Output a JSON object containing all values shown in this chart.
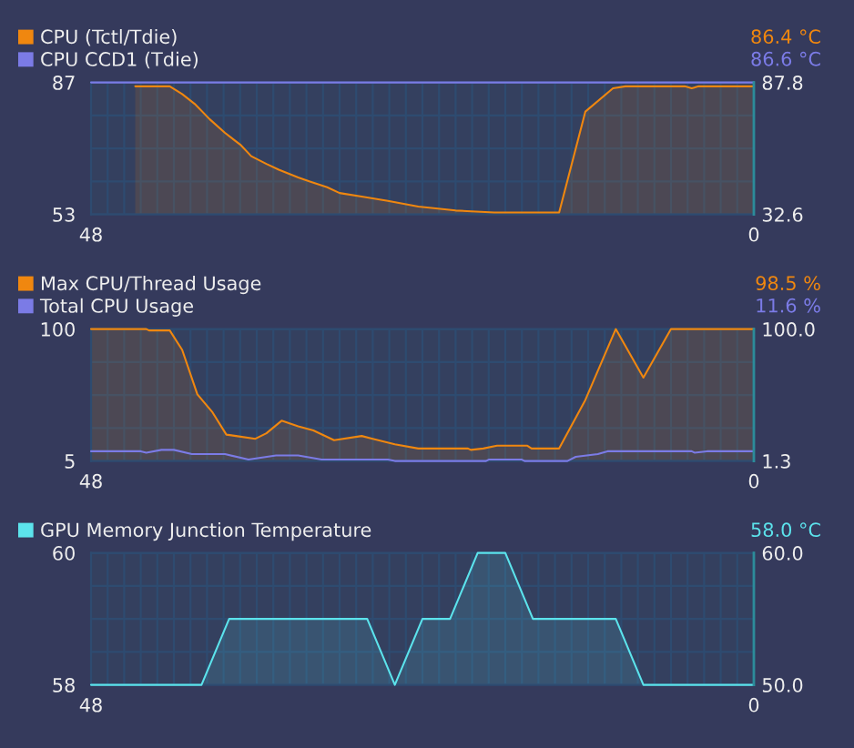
{
  "chart_data": [
    {
      "type": "area",
      "legend": "top left",
      "grid": true,
      "series": [
        {
          "name": "CPU (Tctl/Tdie)",
          "color": "#f0870f",
          "x": [
            44.8,
            42.3,
            41.4,
            40.5,
            39.4,
            38.3,
            37.2,
            36.4,
            35.3,
            34.4,
            33.0,
            32.2,
            30.9,
            30.0,
            28.2,
            26.5,
            24.3,
            21.6,
            18.8,
            14.1,
            12.2,
            10.2,
            9.3,
            5.0,
            4.5,
            4.0,
            0
          ],
          "values": [
            86,
            86,
            84,
            81.5,
            77.5,
            74,
            71,
            68,
            66,
            64.5,
            62.5,
            61.5,
            60,
            58.5,
            57.5,
            56.5,
            55,
            54,
            53.5,
            53.5,
            79.5,
            85.5,
            86,
            86,
            85.5,
            86,
            86
          ]
        },
        {
          "name": "CPU CCD1 (Tdie)",
          "color": "#7b7be6",
          "type": "line",
          "x": [
            48,
            0
          ],
          "values": [
            87,
            87
          ]
        }
      ],
      "xlim": [
        48,
        0
      ],
      "xticks": [
        48,
        {
          "value": 46.8,
          "label": null
        },
        {
          "value": 45.6,
          "label": null
        },
        {
          "value": 44.4,
          "label": null
        },
        {
          "value": 43.2,
          "label": null
        },
        {
          "value": 42,
          "label": null
        },
        {
          "value": 40.8,
          "label": null
        },
        {
          "value": 39.6,
          "label": null
        },
        {
          "value": 38.4,
          "label": null
        },
        {
          "value": 37.2,
          "label": null
        },
        {
          "value": 36,
          "label": null
        },
        {
          "value": 34.8,
          "label": null
        },
        {
          "value": 33.6,
          "label": null
        },
        {
          "value": 32.4,
          "label": null
        },
        {
          "value": 31.2,
          "label": null
        },
        {
          "value": 30,
          "label": null
        },
        {
          "value": 28.8,
          "label": null
        },
        {
          "value": 27.6,
          "label": null
        },
        {
          "value": 26.4,
          "label": null
        },
        {
          "value": 25.2,
          "label": null
        },
        {
          "value": 24,
          "label": null
        },
        {
          "value": 22.8,
          "label": null
        },
        {
          "value": 21.6,
          "label": null
        },
        {
          "value": 20.4,
          "label": null
        },
        {
          "value": 19.2,
          "label": null
        },
        {
          "value": 18,
          "label": null
        },
        {
          "value": 16.8,
          "label": null
        },
        {
          "value": 15.6,
          "label": null
        },
        {
          "value": 14.4,
          "label": null
        },
        {
          "value": 13.2,
          "label": null
        },
        {
          "value": 12,
          "label": null
        },
        {
          "value": 10.8,
          "label": null
        },
        {
          "value": 9.6,
          "label": null
        },
        {
          "value": 8.4,
          "label": null
        },
        {
          "value": 7.2,
          "label": null
        },
        {
          "value": 6,
          "label": null
        },
        {
          "value": 4.8,
          "label": null
        },
        {
          "value": 3.6,
          "label": null
        },
        {
          "value": 2.4,
          "label": null
        },
        {
          "value": 1.2,
          "label": null
        },
        0
      ],
      "ylim": [
        53,
        87
      ],
      "yticks": [
        53,
        {
          "value": 61.5,
          "label": null
        },
        {
          "value": 70,
          "label": null
        },
        {
          "value": 78.5,
          "label": null
        },
        87
      ],
      "y2lim": [
        32.6,
        87.8
      ],
      "y2ticks": [
        32.6,
        87.8
      ],
      "annotations": [
        "86.4 °C",
        "86.6 °C"
      ]
    },
    {
      "type": "area",
      "legend": "top left",
      "grid": true,
      "series": [
        {
          "name": "Max CPU/Thread Usage",
          "color": "#f0870f",
          "x": [
            48,
            44.0,
            43.8,
            42.3,
            41.4,
            40.3,
            39.2,
            38.2,
            37.5,
            36.1,
            35.3,
            34.2,
            33.0,
            31.9,
            30.4,
            28.4,
            27.6,
            26.0,
            24.3,
            20.7,
            20.5,
            19.6,
            18.6,
            16.4,
            16.1,
            14.1,
            12.2,
            10.0,
            8.0,
            6.0,
            0
          ],
          "values": [
            100,
            100,
            99,
            99,
            85,
            53,
            40,
            24,
            23,
            21,
            25,
            34,
            30,
            27,
            20,
            23,
            21,
            17,
            14,
            14,
            13,
            14,
            16,
            16,
            14,
            14,
            49,
            100,
            65,
            100,
            100
          ]
        },
        {
          "name": "Total CPU Usage",
          "color": "#7b7be6",
          "type": "line",
          "x": [
            48,
            44.4,
            44.0,
            42.9,
            42.0,
            40.7,
            38.3,
            36.6,
            34.6,
            33.0,
            31.3,
            26.5,
            26.0,
            19.4,
            19.2,
            16.8,
            16.6,
            13.5,
            12.9,
            11.3,
            10.6,
            4.5,
            4.3,
            3.4,
            0
          ],
          "values": [
            12,
            12,
            11,
            13,
            13,
            10,
            10,
            6,
            9,
            9,
            6,
            6,
            5,
            5,
            6,
            6,
            5,
            5,
            8,
            10,
            12,
            12,
            11,
            12,
            12
          ]
        }
      ],
      "xlim": [
        48,
        0
      ],
      "xticks": [
        48,
        {
          "value": 46.8,
          "label": null
        },
        {
          "value": 45.6,
          "label": null
        },
        {
          "value": 44.4,
          "label": null
        },
        {
          "value": 43.2,
          "label": null
        },
        {
          "value": 42,
          "label": null
        },
        {
          "value": 40.8,
          "label": null
        },
        {
          "value": 39.6,
          "label": null
        },
        {
          "value": 38.4,
          "label": null
        },
        {
          "value": 37.2,
          "label": null
        },
        {
          "value": 36,
          "label": null
        },
        {
          "value": 34.8,
          "label": null
        },
        {
          "value": 33.6,
          "label": null
        },
        {
          "value": 32.4,
          "label": null
        },
        {
          "value": 31.2,
          "label": null
        },
        {
          "value": 30,
          "label": null
        },
        {
          "value": 28.8,
          "label": null
        },
        {
          "value": 27.6,
          "label": null
        },
        {
          "value": 26.4,
          "label": null
        },
        {
          "value": 25.2,
          "label": null
        },
        {
          "value": 24,
          "label": null
        },
        {
          "value": 22.8,
          "label": null
        },
        {
          "value": 21.6,
          "label": null
        },
        {
          "value": 20.4,
          "label": null
        },
        {
          "value": 19.2,
          "label": null
        },
        {
          "value": 18,
          "label": null
        },
        {
          "value": 16.8,
          "label": null
        },
        {
          "value": 15.6,
          "label": null
        },
        {
          "value": 14.4,
          "label": null
        },
        {
          "value": 13.2,
          "label": null
        },
        {
          "value": 12,
          "label": null
        },
        {
          "value": 10.8,
          "label": null
        },
        {
          "value": 9.6,
          "label": null
        },
        {
          "value": 8.4,
          "label": null
        },
        {
          "value": 7.2,
          "label": null
        },
        {
          "value": 6,
          "label": null
        },
        {
          "value": 4.8,
          "label": null
        },
        {
          "value": 3.6,
          "label": null
        },
        {
          "value": 2.4,
          "label": null
        },
        {
          "value": 1.2,
          "label": null
        },
        0
      ],
      "ylim": [
        5,
        100
      ],
      "yticks": [
        5,
        {
          "value": 28.75,
          "label": null
        },
        {
          "value": 52.5,
          "label": null
        },
        {
          "value": 76.25,
          "label": null
        },
        100
      ],
      "y2lim": [
        1.3,
        100
      ],
      "y2ticks": [
        1.3,
        {
          "value": 100,
          "label": "100.0"
        }
      ],
      "annotations": [
        "98.5 %",
        "11.6 %"
      ]
    },
    {
      "type": "area",
      "legend": "top left",
      "grid": true,
      "series": [
        {
          "name": "GPU Memory Junction Temperature",
          "color": "#5ce3ec",
          "x": [
            48,
            40,
            38,
            28,
            26,
            24,
            22,
            20,
            18,
            16,
            10,
            8,
            0
          ],
          "values": [
            58,
            58,
            59,
            59,
            58,
            59,
            59,
            60,
            60,
            59,
            59,
            58,
            58
          ]
        }
      ],
      "xlim": [
        48,
        0
      ],
      "xticks": [
        48,
        {
          "value": 46.8,
          "label": null
        },
        {
          "value": 45.6,
          "label": null
        },
        {
          "value": 44.4,
          "label": null
        },
        {
          "value": 43.2,
          "label": null
        },
        {
          "value": 42,
          "label": null
        },
        {
          "value": 40.8,
          "label": null
        },
        {
          "value": 39.6,
          "label": null
        },
        {
          "value": 38.4,
          "label": null
        },
        {
          "value": 37.2,
          "label": null
        },
        {
          "value": 36,
          "label": null
        },
        {
          "value": 34.8,
          "label": null
        },
        {
          "value": 33.6,
          "label": null
        },
        {
          "value": 32.4,
          "label": null
        },
        {
          "value": 31.2,
          "label": null
        },
        {
          "value": 30,
          "label": null
        },
        {
          "value": 28.8,
          "label": null
        },
        {
          "value": 27.6,
          "label": null
        },
        {
          "value": 26.4,
          "label": null
        },
        {
          "value": 25.2,
          "label": null
        },
        {
          "value": 24,
          "label": null
        },
        {
          "value": 22.8,
          "label": null
        },
        {
          "value": 21.6,
          "label": null
        },
        {
          "value": 20.4,
          "label": null
        },
        {
          "value": 19.2,
          "label": null
        },
        {
          "value": 18,
          "label": null
        },
        {
          "value": 16.8,
          "label": null
        },
        {
          "value": 15.6,
          "label": null
        },
        {
          "value": 14.4,
          "label": null
        },
        {
          "value": 13.2,
          "label": null
        },
        {
          "value": 12,
          "label": null
        },
        {
          "value": 10.8,
          "label": null
        },
        {
          "value": 9.6,
          "label": null
        },
        {
          "value": 8.4,
          "label": null
        },
        {
          "value": 7.2,
          "label": null
        },
        {
          "value": 6,
          "label": null
        },
        {
          "value": 4.8,
          "label": null
        },
        {
          "value": 3.6,
          "label": null
        },
        {
          "value": 2.4,
          "label": null
        },
        {
          "value": 1.2,
          "label": null
        },
        0
      ],
      "ylim": [
        58,
        60
      ],
      "yticks": [
        58,
        {
          "value": 58.5,
          "label": null
        },
        {
          "value": 59,
          "label": null
        },
        {
          "value": 59.5,
          "label": null
        },
        60
      ],
      "y2lim": [
        50,
        60
      ],
      "y2ticks": [
        {
          "value": 50,
          "label": "50.0"
        },
        {
          "value": 60,
          "label": "60.0"
        }
      ],
      "annotations": [
        "58.0 °C"
      ]
    }
  ]
}
